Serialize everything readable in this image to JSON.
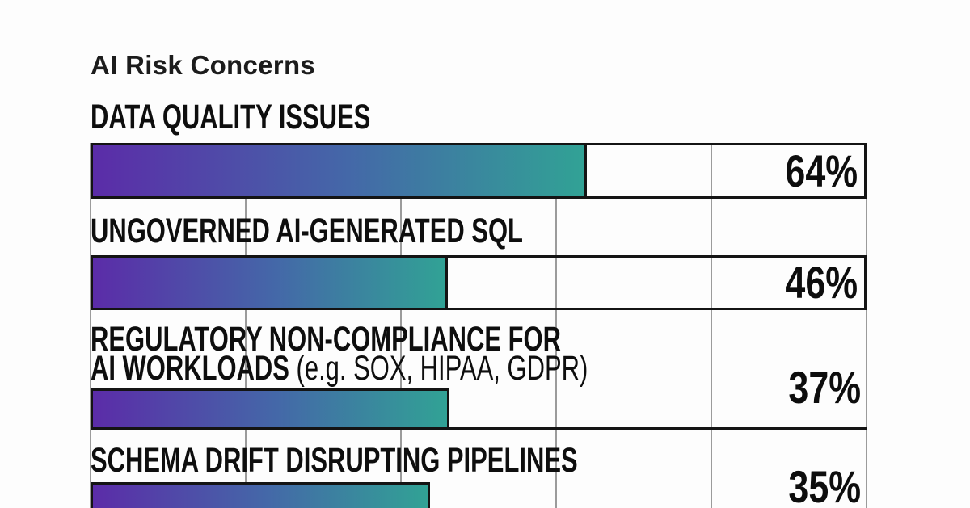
{
  "title": "AI Risk Concerns",
  "chart_data": {
    "type": "bar",
    "orientation": "horizontal",
    "title": "AI Risk Concerns",
    "categories": [
      "DATA QUALITY ISSUES",
      "UNGOVERNED AI-GENERATED SQL",
      "REGULATORY NON-COMPLIANCE FOR AI WORKLOADS (e.g. SOX, HIPAA, GDPR)",
      "SCHEMA DRIFT DISRUPTING PIPELINES"
    ],
    "values": [
      64,
      46,
      37,
      35
    ],
    "unit": "%",
    "xlim": [
      0,
      100
    ],
    "gridline_positions_pct": [
      0,
      20,
      40,
      60,
      80,
      100
    ],
    "grid": "vertical",
    "legend": "none"
  },
  "rows": [
    {
      "label": "DATA QUALITY ISSUES",
      "value": 64,
      "value_label": "64%"
    },
    {
      "label": "UNGOVERNED AI-GENERATED SQL",
      "value": 46,
      "value_label": "46%"
    },
    {
      "label_line1": "REGULATORY NON-COMPLIANCE FOR",
      "label_line2_bold": "AI WORKLOADS",
      "label_line2_rest": " (e.g. SOX, HIPAA, GDPR)",
      "value": 37,
      "value_label": "37%"
    },
    {
      "label": "SCHEMA DRIFT DISRUPTING PIPELINES",
      "value": 35,
      "value_label": "35%"
    }
  ],
  "colors": {
    "bar_gradient_start": "#5b2ca8",
    "bar_gradient_mid": "#4468a8",
    "bar_gradient_end": "#31a295",
    "border": "#141414",
    "gridline": "#9b9b9b",
    "text": "#0e0e0e",
    "background": "#fdfdfd"
  }
}
